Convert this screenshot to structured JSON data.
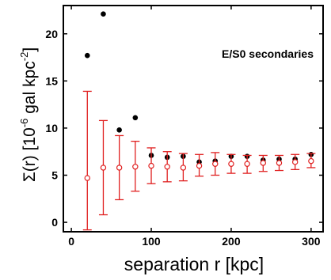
{
  "chart_data": {
    "type": "scatter",
    "title": "",
    "annotation": "E/S0 secondaries",
    "xlabel": "separation r [kpc]",
    "ylabel": {
      "prefix": "Σ(r) [10",
      "exp1": "-6",
      "middle": " gal kpc",
      "exp2": "-2",
      "suffix": "]"
    },
    "xlim": [
      -10,
      315
    ],
    "ylim": [
      -1,
      23
    ],
    "x_ticks": [
      0,
      100,
      200,
      300
    ],
    "y_ticks": [
      0,
      5,
      10,
      15,
      20
    ],
    "grid": false,
    "series": [
      {
        "marker": "filled-circle",
        "color": "#000000",
        "points": [
          {
            "x": 20,
            "y": 17.7
          },
          {
            "x": 40,
            "y": 22.1
          },
          {
            "x": 60,
            "y": 9.8
          },
          {
            "x": 80,
            "y": 11.1
          },
          {
            "x": 100,
            "y": 7.1
          },
          {
            "x": 120,
            "y": 6.9
          },
          {
            "x": 140,
            "y": 7.0
          },
          {
            "x": 160,
            "y": 6.4
          },
          {
            "x": 180,
            "y": 6.5
          },
          {
            "x": 200,
            "y": 7.0
          },
          {
            "x": 220,
            "y": 7.0
          },
          {
            "x": 240,
            "y": 6.6
          },
          {
            "x": 260,
            "y": 6.7
          },
          {
            "x": 280,
            "y": 6.7
          },
          {
            "x": 300,
            "y": 7.2
          }
        ]
      },
      {
        "marker": "open-circle",
        "color": "#e02020",
        "error_bars": true,
        "points": [
          {
            "x": 20,
            "y": 4.7,
            "lo": -0.8,
            "hi": 13.9
          },
          {
            "x": 40,
            "y": 5.8,
            "lo": 0.8,
            "hi": 10.8
          },
          {
            "x": 60,
            "y": 5.8,
            "lo": 2.4,
            "hi": 9.2
          },
          {
            "x": 80,
            "y": 5.9,
            "lo": 3.3,
            "hi": 8.6
          },
          {
            "x": 100,
            "y": 6.0,
            "lo": 4.1,
            "hi": 7.9
          },
          {
            "x": 120,
            "y": 5.9,
            "lo": 4.3,
            "hi": 7.5
          },
          {
            "x": 140,
            "y": 5.8,
            "lo": 4.4,
            "hi": 7.3
          },
          {
            "x": 160,
            "y": 6.0,
            "lo": 4.9,
            "hi": 7.2
          },
          {
            "x": 180,
            "y": 6.2,
            "lo": 5.0,
            "hi": 7.4
          },
          {
            "x": 200,
            "y": 6.2,
            "lo": 5.2,
            "hi": 7.2
          },
          {
            "x": 220,
            "y": 6.2,
            "lo": 5.2,
            "hi": 7.1
          },
          {
            "x": 240,
            "y": 6.3,
            "lo": 5.4,
            "hi": 7.1
          },
          {
            "x": 260,
            "y": 6.3,
            "lo": 5.5,
            "hi": 7.1
          },
          {
            "x": 280,
            "y": 6.4,
            "lo": 5.6,
            "hi": 7.2
          },
          {
            "x": 300,
            "y": 6.5,
            "lo": 5.8,
            "hi": 7.3
          }
        ]
      }
    ]
  }
}
